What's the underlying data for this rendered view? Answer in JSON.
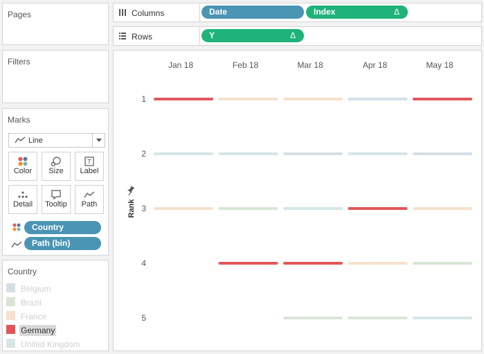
{
  "cards": {
    "pages": "Pages",
    "filters": "Filters",
    "marks": "Marks",
    "legend": "Country"
  },
  "marks_card": {
    "mark_type": "Line",
    "buttons": [
      {
        "label": "Color",
        "icon": "color-dots-icon"
      },
      {
        "label": "Size",
        "icon": "size-icon"
      },
      {
        "label": "Label",
        "icon": "label-icon"
      },
      {
        "label": "Detail",
        "icon": "detail-icon"
      },
      {
        "label": "Tooltip",
        "icon": "tooltip-icon"
      },
      {
        "label": "Path",
        "icon": "path-icon"
      }
    ],
    "fields": [
      {
        "label": "Country",
        "icon": "color-dots-icon"
      },
      {
        "label": "Path (bin)",
        "icon": "path-icon"
      }
    ]
  },
  "shelves": {
    "columns_label": "Columns",
    "rows_label": "Rows",
    "columns_pills": [
      {
        "label": "Date",
        "color": "blue"
      },
      {
        "label": "Index",
        "color": "green",
        "delta": "Δ"
      }
    ],
    "rows_pills": [
      {
        "label": "Y",
        "color": "green",
        "delta": "Δ"
      }
    ]
  },
  "legend": {
    "items": [
      {
        "name": "Belgium",
        "color": "#d5dfe6",
        "highlighted": false
      },
      {
        "name": "Brazil",
        "color": "#d8e5d5",
        "highlighted": false
      },
      {
        "name": "France",
        "color": "#f5e1cc",
        "highlighted": false
      },
      {
        "name": "Germany",
        "color": "#e15759",
        "highlighted": true
      },
      {
        "name": "United Kingdom",
        "color": "#d5e6e5",
        "highlighted": false
      }
    ]
  },
  "chart_data": {
    "type": "line",
    "ylabel": "Rank",
    "categories": [
      "Jan 18",
      "Feb 18",
      "Mar 18",
      "Apr 18",
      "May 18"
    ],
    "ylim": [
      1,
      5
    ],
    "y_ticks": [
      "1",
      "2",
      "3",
      "4",
      "5"
    ],
    "series": [
      {
        "name": "Belgium",
        "color": "#d5dfe6",
        "values": [
          null,
          2,
          2,
          1,
          2
        ]
      },
      {
        "name": "Brazil",
        "color": "#d8e5d5",
        "values": [
          null,
          3,
          5,
          5,
          4
        ]
      },
      {
        "name": "France",
        "color": "#f5e1cc",
        "values": [
          3,
          1,
          1,
          4,
          3
        ]
      },
      {
        "name": "Germany",
        "color": "#e15759",
        "values": [
          1,
          4,
          4,
          3,
          1
        ]
      },
      {
        "name": "United Kingdom",
        "color": "#d5e6e5",
        "values": [
          2,
          2,
          3,
          2,
          5
        ]
      }
    ]
  }
}
